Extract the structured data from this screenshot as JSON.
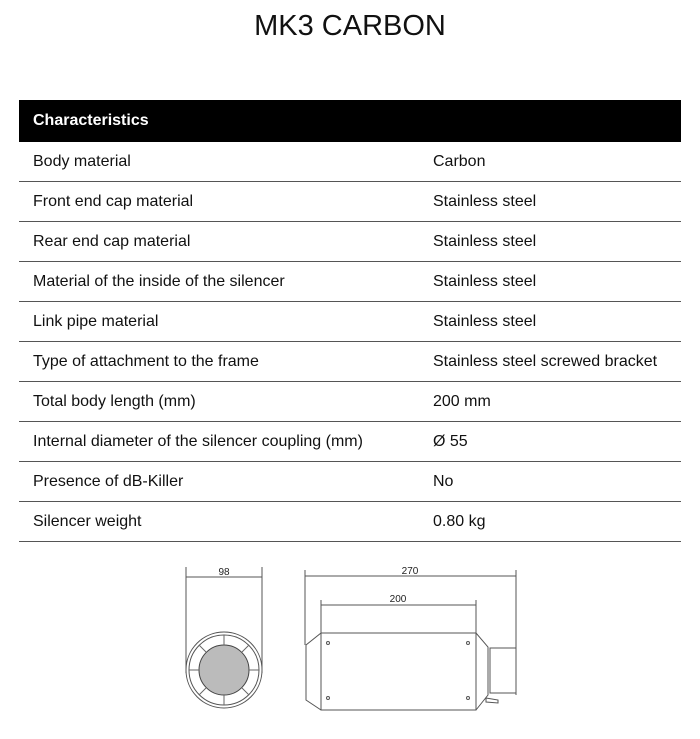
{
  "title": "MK3 CARBON",
  "table": {
    "header": "Characteristics",
    "rows": [
      {
        "label": "Body material",
        "value": "Carbon"
      },
      {
        "label": "Front end cap material",
        "value": "Stainless steel"
      },
      {
        "label": "Rear end cap material",
        "value": "Stainless steel"
      },
      {
        "label": "Material of the inside of the silencer",
        "value": "Stainless steel"
      },
      {
        "label": "Link pipe material",
        "value": "Stainless steel"
      },
      {
        "label": "Type of attachment to the frame",
        "value": "Stainless steel screwed bracket"
      },
      {
        "label": "Total body length (mm)",
        "value": "200 mm"
      },
      {
        "label": "Internal diameter of the silencer coupling (mm)",
        "value": "Ø 55"
      },
      {
        "label": "Presence of dB-Killer",
        "value": "No"
      },
      {
        "label": "Silencer weight",
        "value": "0.80 kg"
      }
    ]
  },
  "drawing": {
    "diameter": "98",
    "total_length": "270",
    "body_length": "200"
  }
}
